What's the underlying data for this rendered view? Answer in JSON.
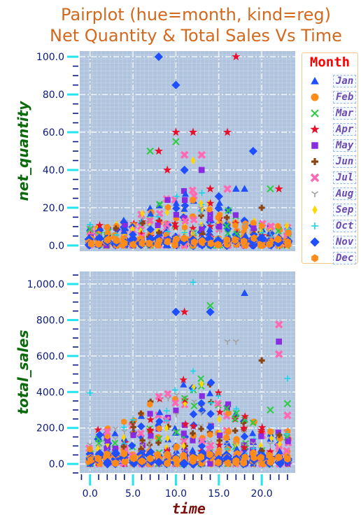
{
  "figure": {
    "title_line1": "Pairplot (hue=month, kind=reg)",
    "title_line2": "Net Quantity & Total Sales Vs Time"
  },
  "legend": {
    "title": "Month",
    "entries": [
      {
        "label": "Jan",
        "color": "#1f4fff",
        "marker": "triangle"
      },
      {
        "label": "Feb",
        "color": "#ff8c1a",
        "marker": "circle"
      },
      {
        "label": "Mar",
        "color": "#2ecc40",
        "marker": "x"
      },
      {
        "label": "Apr",
        "color": "#e8102a",
        "marker": "star"
      },
      {
        "label": "May",
        "color": "#8a2be2",
        "marker": "square"
      },
      {
        "label": "Jun",
        "color": "#8b4513",
        "marker": "plus"
      },
      {
        "label": "Jul",
        "color": "#ff69b4",
        "marker": "xfill"
      },
      {
        "label": "Aug",
        "color": "#a0a0a0",
        "marker": "tri_down"
      },
      {
        "label": "Sep",
        "color": "#ffd700",
        "marker": "thin_diamond"
      },
      {
        "label": "Oct",
        "color": "#17d4e8",
        "marker": "plus_thin"
      },
      {
        "label": "Nov",
        "color": "#1f4fff",
        "marker": "diamond"
      },
      {
        "label": "Dec",
        "color": "#ff8c1a",
        "marker": "hexagon"
      }
    ]
  },
  "chart_data": [
    {
      "type": "scatter",
      "title": "",
      "xlabel": "",
      "ylabel": "net_quantity",
      "xlim": [
        -1.2,
        23.9
      ],
      "ylim": [
        -3,
        103
      ],
      "yticks": [
        0,
        20,
        40,
        60,
        80,
        100
      ],
      "ytick_labels": [
        "0.0",
        "20.0",
        "40.0",
        "60.0",
        "80.0",
        "100.0"
      ],
      "grid": true,
      "highlight_points": [
        {
          "x": 8,
          "y": 100,
          "month": "Nov"
        },
        {
          "x": 17,
          "y": 100,
          "month": "Apr"
        },
        {
          "x": 10,
          "y": 85,
          "month": "Nov"
        },
        {
          "x": 10,
          "y": 60,
          "month": "Apr"
        },
        {
          "x": 12,
          "y": 60,
          "month": "Apr"
        },
        {
          "x": 16,
          "y": 60,
          "month": "Apr"
        },
        {
          "x": 10,
          "y": 55,
          "month": "Mar"
        },
        {
          "x": 7,
          "y": 50,
          "month": "Mar"
        },
        {
          "x": 8,
          "y": 50,
          "month": "Apr"
        },
        {
          "x": 19,
          "y": 50,
          "month": "Nov"
        },
        {
          "x": 11,
          "y": 48,
          "month": "Jul"
        },
        {
          "x": 13,
          "y": 48,
          "month": "Jul"
        },
        {
          "x": 12,
          "y": 45,
          "month": "Sep"
        },
        {
          "x": 11,
          "y": 40,
          "month": "Nov"
        },
        {
          "x": 13,
          "y": 40,
          "month": "May"
        },
        {
          "x": 9,
          "y": 40,
          "month": "Apr"
        },
        {
          "x": 14,
          "y": 30,
          "month": "Apr"
        },
        {
          "x": 16,
          "y": 30,
          "month": "Jul"
        },
        {
          "x": 17,
          "y": 30,
          "month": "Jan"
        },
        {
          "x": 18,
          "y": 30,
          "month": "Jan"
        },
        {
          "x": 21,
          "y": 30,
          "month": "Mar"
        },
        {
          "x": 22,
          "y": 30,
          "month": "Apr"
        },
        {
          "x": 15,
          "y": 26,
          "month": "Nov"
        },
        {
          "x": 20,
          "y": 20,
          "month": "Jun"
        },
        {
          "x": 0,
          "y": 11,
          "month": "Oct"
        }
      ]
    },
    {
      "type": "scatter",
      "title": "",
      "xlabel": "time",
      "ylabel": "total_sales",
      "xlim": [
        -1.2,
        23.9
      ],
      "xticks": [
        0,
        5,
        10,
        15,
        20
      ],
      "xtick_labels": [
        "0.0",
        "5.0",
        "10.0",
        "15.0",
        "20.0"
      ],
      "ylim": [
        -50,
        1070
      ],
      "yticks": [
        0,
        200,
        400,
        600,
        800,
        1000
      ],
      "ytick_labels": [
        "0.0",
        "200.0",
        "400.0",
        "600.0",
        "800.0",
        "1,000.0"
      ],
      "grid": true,
      "highlight_points": [
        {
          "x": 12,
          "y": 1010,
          "month": "Oct"
        },
        {
          "x": 18,
          "y": 950,
          "month": "Jan"
        },
        {
          "x": 14,
          "y": 880,
          "month": "Mar"
        },
        {
          "x": 10,
          "y": 845,
          "month": "Nov"
        },
        {
          "x": 11,
          "y": 845,
          "month": "Apr"
        },
        {
          "x": 14,
          "y": 845,
          "month": "Nov"
        },
        {
          "x": 22,
          "y": 775,
          "month": "Jul"
        },
        {
          "x": 16,
          "y": 680,
          "month": "Aug"
        },
        {
          "x": 17,
          "y": 680,
          "month": "Aug"
        },
        {
          "x": 22,
          "y": 680,
          "month": "May"
        },
        {
          "x": 22,
          "y": 610,
          "month": "Jul"
        },
        {
          "x": 20,
          "y": 575,
          "month": "Jun"
        },
        {
          "x": 0,
          "y": 395,
          "month": "Oct"
        },
        {
          "x": 23,
          "y": 475,
          "month": "Oct"
        },
        {
          "x": 23,
          "y": 335,
          "month": "Mar"
        },
        {
          "x": 21,
          "y": 300,
          "month": "Mar"
        },
        {
          "x": 23,
          "y": 270,
          "month": "Jul"
        },
        {
          "x": 2,
          "y": 180,
          "month": "Jul"
        },
        {
          "x": 5,
          "y": 245,
          "month": "Oct"
        }
      ]
    }
  ]
}
